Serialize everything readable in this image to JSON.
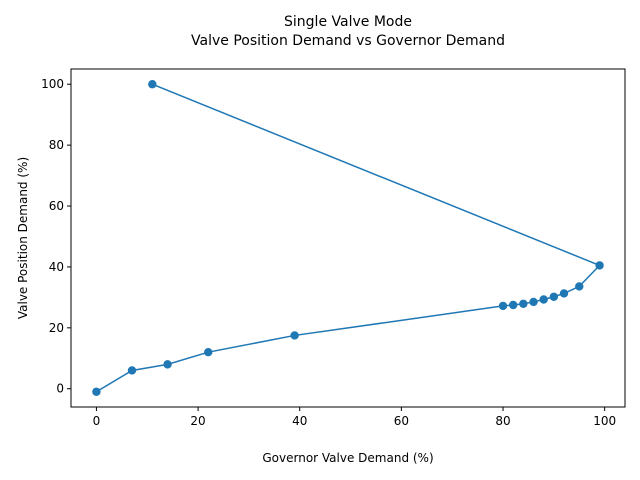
{
  "chart_data": {
    "type": "line",
    "title": "Single Valve Mode",
    "subtitle": "Valve Position Demand vs Governor Demand",
    "xlabel": "Governor Valve Demand (%)",
    "ylabel": "Valve Position Demand (%)",
    "xlim": [
      -5,
      104
    ],
    "ylim": [
      -6,
      105
    ],
    "xticks": [
      0,
      20,
      40,
      60,
      80,
      100
    ],
    "yticks": [
      0,
      20,
      40,
      60,
      80,
      100
    ],
    "grid": false,
    "legend": "none",
    "series": [
      {
        "color": "#1f77b4",
        "marker": "circle",
        "x": [
          0,
          7,
          14,
          22,
          39,
          80,
          82,
          84,
          86,
          88,
          90,
          92,
          95,
          99,
          11
        ],
        "y": [
          -1,
          6,
          8,
          12,
          17.5,
          27.2,
          27.5,
          27.9,
          28.5,
          29.3,
          30.2,
          31.3,
          33.6,
          40.5,
          100
        ]
      }
    ]
  }
}
